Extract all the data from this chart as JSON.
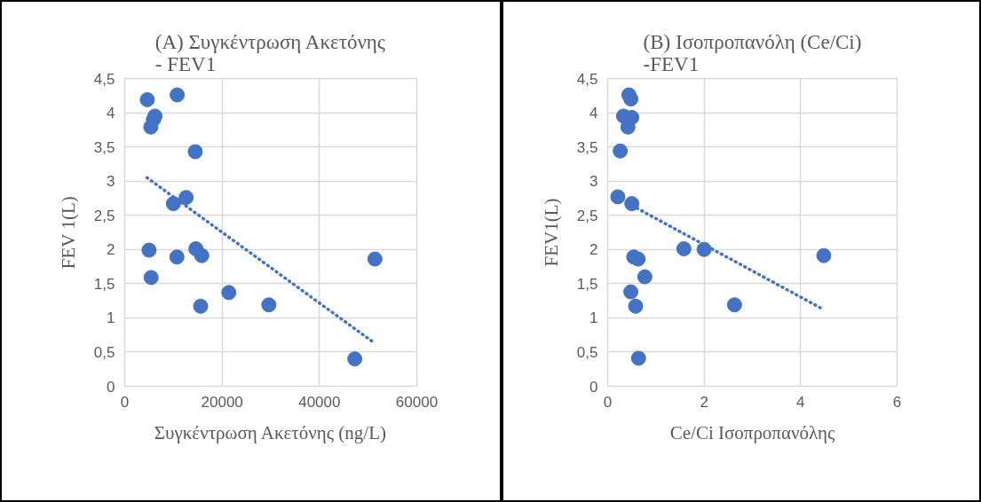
{
  "chart_data": [
    {
      "type": "scatter",
      "title": "(A) Συγκέντρωση Ακετόνης\n- FEV1",
      "xlabel": "Συγκέντρωση Ακετόνης (ng/L)",
      "ylabel": "FEV 1(L)",
      "xlim": [
        0,
        60000
      ],
      "xticks": [
        0,
        20000,
        40000,
        60000
      ],
      "ylim": [
        0,
        4.5
      ],
      "yticks": [
        0,
        {
          "value": 0.5,
          "label": "0,5"
        },
        1,
        {
          "value": 1.5,
          "label": "1,5"
        },
        2,
        {
          "value": 2.5,
          "label": "2,5"
        },
        3,
        {
          "value": 3.5,
          "label": "3,5"
        },
        4,
        {
          "value": 4.5,
          "label": "4,5"
        }
      ],
      "grid": true,
      "marker": "circle",
      "series": [
        {
          "color": "#4472c4",
          "x": [
            4630,
            10780,
            6210,
            5900,
            5360,
            14490,
            12610,
            9990,
            4990,
            10720,
            14620,
            15830,
            5420,
            15590,
            21380,
            29600,
            47260,
            51400
          ],
          "values": [
            4.19,
            4.26,
            3.95,
            3.9,
            3.79,
            3.43,
            2.76,
            2.67,
            1.99,
            1.89,
            2.01,
            1.91,
            1.59,
            1.17,
            1.37,
            1.19,
            0.4,
            1.86
          ]
        },
        {
          "type": "line",
          "line_style": "dotted",
          "marker": "none",
          "color": "#4472c4",
          "x": [
            4570,
            51340
          ],
          "values": [
            3.05,
            0.63
          ]
        }
      ]
    },
    {
      "type": "scatter",
      "title": "(B) Ισοπροπανόλη (Ce/Ci)\n-FEV1",
      "xlabel": "Ce/Ci Ισοπροπανόλης",
      "ylabel": "FEV1(L)",
      "xlim": [
        0,
        6
      ],
      "xticks": [
        0,
        2,
        4,
        6
      ],
      "ylim": [
        0,
        4.5
      ],
      "yticks": [
        0,
        {
          "value": 0.5,
          "label": "0,5"
        },
        1,
        {
          "value": 1.5,
          "label": "1,5"
        },
        2,
        {
          "value": 2.5,
          "label": "2,5"
        },
        3,
        {
          "value": 3.5,
          "label": "3,5"
        },
        4,
        {
          "value": 4.5,
          "label": "4,5"
        }
      ],
      "grid": true,
      "marker": "circle",
      "series": [
        {
          "color": "#4472c4",
          "x": [
            0.44,
            0.48,
            0.33,
            0.5,
            0.42,
            0.26,
            0.21,
            0.5,
            1.58,
            2.0,
            4.48,
            0.54,
            0.63,
            0.77,
            0.48,
            0.58,
            2.63,
            0.64
          ],
          "values": [
            4.26,
            4.2,
            3.95,
            3.93,
            3.79,
            3.44,
            2.77,
            2.67,
            2.01,
            2.0,
            1.91,
            1.89,
            1.86,
            1.6,
            1.38,
            1.17,
            1.19,
            0.41
          ]
        },
        {
          "type": "line",
          "line_style": "dotted",
          "marker": "none",
          "color": "#4472c4",
          "x": [
            0.51,
            4.48
          ],
          "values": [
            2.64,
            1.12
          ]
        }
      ]
    }
  ]
}
